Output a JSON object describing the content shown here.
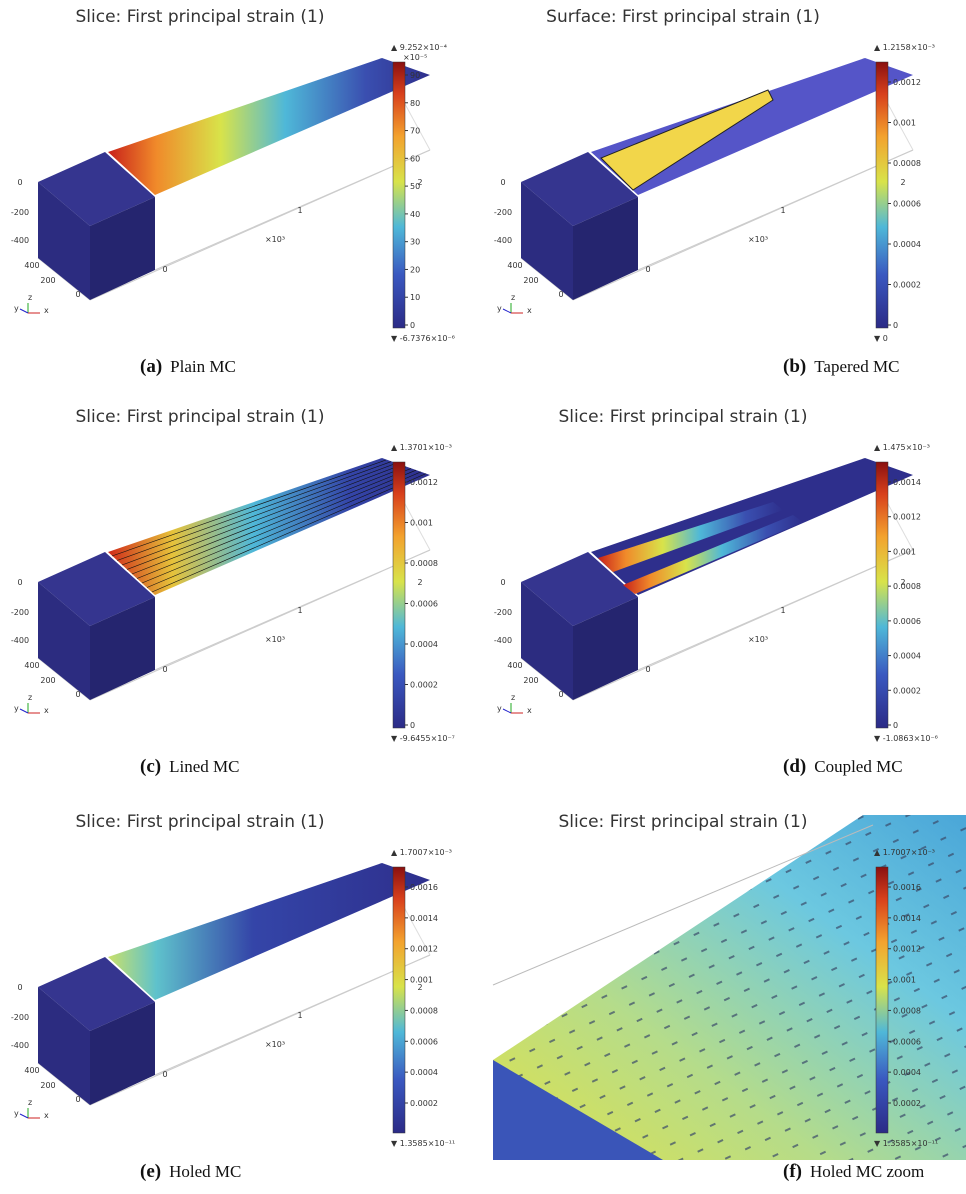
{
  "panels": [
    {
      "title": "Slice: First principal strain (1)",
      "max_label": "▲ 9.252×10⁻⁴",
      "unit": "×10⁻⁵",
      "ticks": [
        "0",
        "10",
        "20",
        "30",
        "40",
        "50",
        "60",
        "70",
        "80",
        "90"
      ],
      "min_label": "▼ -6.7376×10⁻⁶",
      "axis_labels": [
        "0",
        "-200",
        "-400",
        "400",
        "200",
        "0",
        "0",
        "1",
        "×10³",
        "2"
      ],
      "triad": [
        "z",
        "y",
        "x"
      ],
      "caption_label": "(a)",
      "caption": "Plain MC"
    },
    {
      "title": "Surface: First principal strain (1)",
      "max_label": "▲ 1.2158×10⁻³",
      "ticks": [
        "0",
        "0.0002",
        "0.0004",
        "0.0006",
        "0.0008",
        "0.001",
        "0.0012"
      ],
      "min_label": "▼ 0",
      "axis_labels": [
        "0",
        "-200",
        "-400",
        "400",
        "200",
        "0",
        "0",
        "1",
        "×10³",
        "2"
      ],
      "triad": [
        "z",
        "y",
        "x"
      ],
      "caption_label": "(b)",
      "caption": "Tapered MC"
    },
    {
      "title": "Slice: First principal strain (1)",
      "max_label": "▲ 1.3701×10⁻³",
      "ticks": [
        "0",
        "0.0002",
        "0.0004",
        "0.0006",
        "0.0008",
        "0.001",
        "0.0012"
      ],
      "min_label": "▼ -9.6455×10⁻⁷",
      "axis_labels": [
        "0",
        "-200",
        "-400",
        "400",
        "200",
        "0",
        "0",
        "1",
        "×10³",
        "2"
      ],
      "triad": [
        "z",
        "y",
        "x"
      ],
      "caption_label": "(c)",
      "caption": "Lined MC"
    },
    {
      "title": "Slice: First principal strain (1)",
      "max_label": "▲ 1.475×10⁻³",
      "ticks": [
        "0",
        "0.0002",
        "0.0004",
        "0.0006",
        "0.0008",
        "0.001",
        "0.0012",
        "0.0014"
      ],
      "min_label": "▼ -1.0863×10⁻⁶",
      "axis_labels": [
        "0",
        "-200",
        "-400",
        "400",
        "200",
        "0",
        "0",
        "1",
        "×10³",
        "2"
      ],
      "triad": [
        "z",
        "y",
        "x"
      ],
      "caption_label": "(d)",
      "caption": "Coupled MC"
    },
    {
      "title": "Slice: First principal strain (1)",
      "max_label": "▲ 1.7007×10⁻³",
      "ticks": [
        "0.0002",
        "0.0004",
        "0.0006",
        "0.0008",
        "0.001",
        "0.0012",
        "0.0014",
        "0.0016"
      ],
      "min_label": "▼ 1.3585×10⁻¹¹",
      "axis_labels": [
        "0",
        "-200",
        "-400",
        "400",
        "200",
        "0",
        "0",
        "1",
        "×10³",
        "2"
      ],
      "triad": [
        "z",
        "y",
        "x"
      ],
      "caption_label": "(e)",
      "caption": "Holed MC"
    },
    {
      "title": "Slice: First principal strain (1)",
      "max_label": "▲ 1.7007×10⁻³",
      "ticks": [
        "0.0002",
        "0.0004",
        "0.0006",
        "0.0008",
        "0.001",
        "0.0012",
        "0.0014",
        "0.0016"
      ],
      "min_label": "▼ 1.3585×10⁻¹¹",
      "caption_label": "(f)",
      "caption": "Holed MC zoom"
    }
  ]
}
